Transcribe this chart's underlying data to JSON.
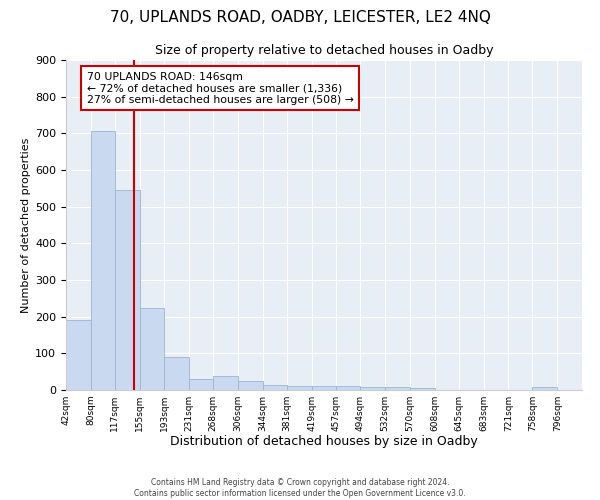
{
  "title": "70, UPLANDS ROAD, OADBY, LEICESTER, LE2 4NQ",
  "subtitle": "Size of property relative to detached houses in Oadby",
  "xlabel": "Distribution of detached houses by size in Oadby",
  "ylabel": "Number of detached properties",
  "bar_edges": [
    42,
    80,
    117,
    155,
    193,
    231,
    268,
    306,
    344,
    381,
    419,
    457,
    494,
    532,
    570,
    608,
    645,
    683,
    721,
    758,
    796
  ],
  "bar_heights": [
    190,
    707,
    545,
    225,
    90,
    30,
    38,
    25,
    13,
    10,
    10,
    10,
    9,
    8,
    5,
    0,
    0,
    0,
    0,
    9,
    0
  ],
  "bar_color": "#c9daf0",
  "bar_edge_color": "#9ab5d4",
  "vline_x": 146,
  "vline_color": "#cc0000",
  "annotation_text_line1": "70 UPLANDS ROAD: 146sqm",
  "annotation_text_line2": "← 72% of detached houses are smaller (1,336)",
  "annotation_text_line3": "27% of semi-detached houses are larger (508) →",
  "annotation_box_color": "#cc0000",
  "annotation_fill_color": "#ffffff",
  "ylim": [
    0,
    900
  ],
  "background_color": "#e8eef5",
  "footer_line1": "Contains HM Land Registry data © Crown copyright and database right 2024.",
  "footer_line2": "Contains public sector information licensed under the Open Government Licence v3.0.",
  "tick_labels": [
    "42sqm",
    "80sqm",
    "117sqm",
    "155sqm",
    "193sqm",
    "231sqm",
    "268sqm",
    "306sqm",
    "344sqm",
    "381sqm",
    "419sqm",
    "457sqm",
    "494sqm",
    "532sqm",
    "570sqm",
    "608sqm",
    "645sqm",
    "683sqm",
    "721sqm",
    "758sqm",
    "796sqm"
  ],
  "title_fontsize": 11,
  "subtitle_fontsize": 9,
  "xlabel_fontsize": 9,
  "ylabel_fontsize": 8
}
